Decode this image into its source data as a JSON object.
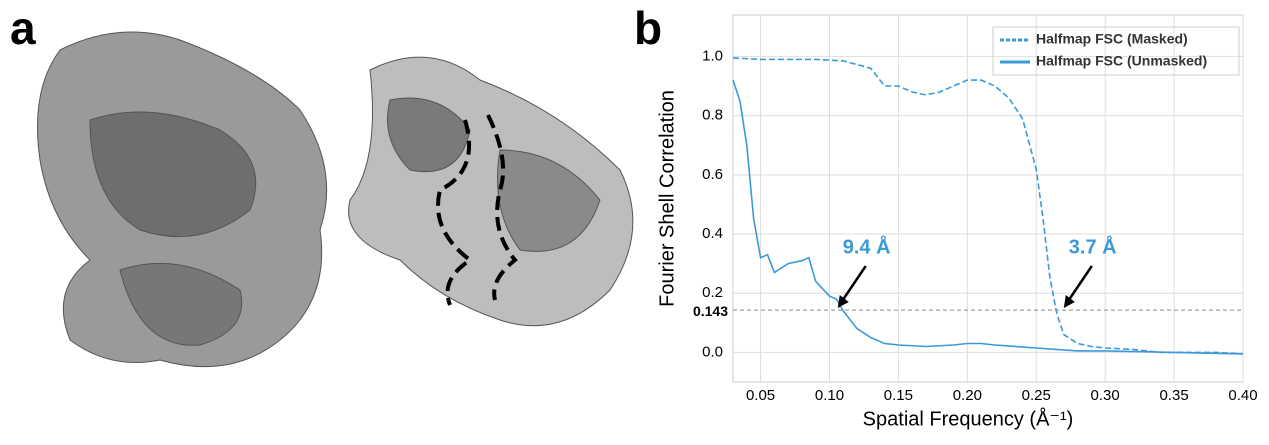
{
  "panels": {
    "a": "a",
    "b": "b"
  },
  "chart_data": {
    "type": "line",
    "xlabel": "Spatial Frequency (Å⁻¹)",
    "ylabel": "Fourier Shell Correlation",
    "xlim": [
      0.03,
      0.4
    ],
    "ylim": [
      -0.1,
      1.14
    ],
    "xticks": [
      0.05,
      {
        "value": 0.1,
        "label": "0.10"
      },
      0.15,
      {
        "value": 0.2,
        "label": "0.20"
      },
      0.25,
      {
        "value": 0.3,
        "label": "0.30"
      },
      0.35,
      {
        "value": 0.4,
        "label": "0.40"
      }
    ],
    "yticks": [
      {
        "value": 0,
        "label": "0.0"
      },
      0.2,
      0.4,
      0.6,
      0.8,
      {
        "value": 1,
        "label": "1.0"
      }
    ],
    "grid": true,
    "legend": "upper right",
    "threshold": 0.143,
    "series": [
      {
        "name": "Halfmap FSC (Masked)",
        "color": "#3a9ad9",
        "linestyle": "dashed",
        "x": [
          0.03,
          0.05,
          0.07,
          0.09,
          0.11,
          0.13,
          0.14,
          0.15,
          0.16,
          0.17,
          0.18,
          0.19,
          0.2,
          0.21,
          0.22,
          0.23,
          0.24,
          0.25,
          0.255,
          0.26,
          0.265,
          0.27,
          0.28,
          0.29,
          0.3,
          0.32,
          0.34,
          0.36,
          0.38,
          0.4
        ],
        "values": [
          0.995,
          0.99,
          0.99,
          0.99,
          0.985,
          0.96,
          0.9,
          0.9,
          0.88,
          0.87,
          0.88,
          0.9,
          0.92,
          0.92,
          0.9,
          0.86,
          0.79,
          0.62,
          0.45,
          0.25,
          0.13,
          0.06,
          0.03,
          0.02,
          0.015,
          0.01,
          0.0,
          0.0,
          0.0,
          -0.005
        ]
      },
      {
        "name": "Halfmap FSC (Unmasked)",
        "color": "#3a9ad9",
        "linestyle": "solid",
        "x": [
          0.03,
          0.035,
          0.04,
          0.045,
          0.05,
          0.055,
          0.06,
          0.07,
          0.08,
          0.085,
          0.09,
          0.1,
          0.105,
          0.11,
          0.12,
          0.13,
          0.14,
          0.15,
          0.17,
          0.19,
          0.2,
          0.21,
          0.22,
          0.25,
          0.28,
          0.3,
          0.35,
          0.4
        ],
        "values": [
          0.92,
          0.85,
          0.7,
          0.45,
          0.32,
          0.33,
          0.27,
          0.3,
          0.31,
          0.32,
          0.24,
          0.19,
          0.18,
          0.14,
          0.08,
          0.05,
          0.03,
          0.025,
          0.02,
          0.025,
          0.03,
          0.03,
          0.025,
          0.015,
          0.005,
          0.005,
          0.0,
          -0.005
        ]
      }
    ],
    "annotations": [
      {
        "text": "9.4 Å",
        "x": 0.106,
        "y": 0.15
      },
      {
        "text": "3.7 Å",
        "x": 0.27,
        "y": 0.15
      }
    ]
  }
}
